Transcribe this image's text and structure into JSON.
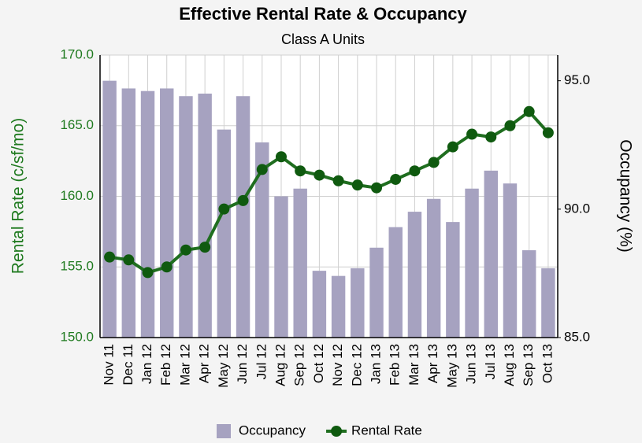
{
  "chart_data": {
    "type": "bar_line",
    "title": "Effective Rental Rate & Occupancy",
    "subtitle": "Class A Units",
    "y_label": "Rental Rate (c/sf/mo)",
    "y2_label": "Occupancy (%)",
    "categories": [
      "Nov 11",
      "Dec 11",
      "Jan 12",
      "Feb 12",
      "Mar 12",
      "Apr 12",
      "May 12",
      "Jun 12",
      "Jul 12",
      "Aug 12",
      "Sep 12",
      "Oct 12",
      "Nov 12",
      "Dec 12",
      "Jan 13",
      "Feb 13",
      "Mar 13",
      "Apr 13",
      "May 13",
      "Jun 13",
      "Jul 13",
      "Aug 13",
      "Sep 13",
      "Oct 13"
    ],
    "series": [
      {
        "name": "Occupancy",
        "type": "bar",
        "axis": "y2",
        "color": "#a6a2c0",
        "values": [
          95.0,
          94.7,
          94.6,
          94.7,
          94.4,
          94.5,
          93.1,
          94.4,
          92.6,
          90.5,
          90.8,
          87.6,
          87.4,
          87.7,
          88.5,
          89.3,
          89.9,
          90.4,
          89.5,
          90.8,
          91.5,
          91.0,
          88.4,
          87.7
        ]
      },
      {
        "name": "Rental Rate",
        "type": "line",
        "axis": "y",
        "color": "#1f6e1f",
        "values": [
          155.7,
          155.5,
          154.6,
          155.0,
          156.2,
          156.4,
          159.1,
          159.7,
          161.9,
          162.8,
          161.8,
          161.5,
          161.1,
          160.8,
          160.6,
          161.2,
          161.8,
          162.4,
          163.5,
          164.4,
          164.2,
          165.0,
          166.0,
          164.5
        ]
      }
    ],
    "ylim": [
      150,
      170
    ],
    "yticks": [
      {
        "value": 150,
        "label": "150.0"
      },
      {
        "value": 155,
        "label": "155.0"
      },
      {
        "value": 160,
        "label": "160.0"
      },
      {
        "value": 165,
        "label": "165.0"
      },
      {
        "value": 170,
        "label": "170.0"
      }
    ],
    "y2lim": [
      85,
      96
    ],
    "y2ticks": [
      {
        "value": 85,
        "label": "85.0"
      },
      {
        "value": 90,
        "label": "90.0"
      },
      {
        "value": 95,
        "label": "95.0"
      }
    ],
    "grid": true,
    "legend": "bottom"
  }
}
